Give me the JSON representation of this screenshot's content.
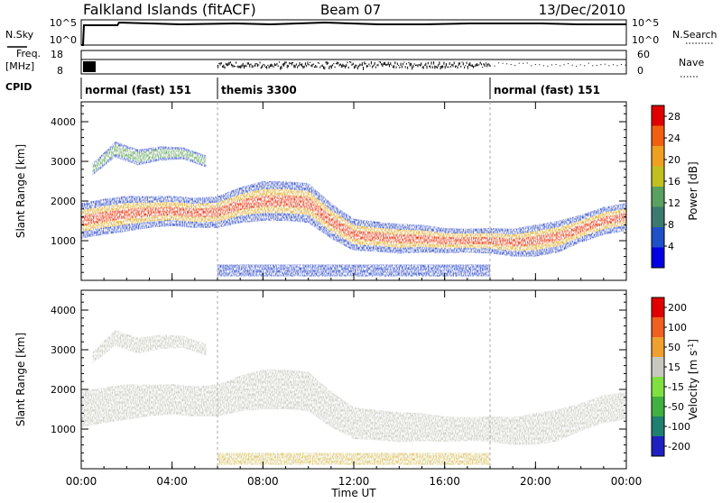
{
  "header": {
    "title": "Falkland Islands (fitACF)",
    "beam": "Beam 07",
    "date": "13/Dec/2010"
  },
  "summary_panels": {
    "nsky_label": "N.Sky",
    "nsearch_label": "N.Search",
    "counts_ticks": [
      "10^5",
      "10^0"
    ],
    "freq_label_1": "Freq.",
    "freq_label_2": "[MHz]",
    "freq_ticks": [
      "18",
      "8"
    ],
    "nave_label": "Nave",
    "nave_ticks": [
      "60",
      "0"
    ],
    "cpid_label": "CPID",
    "cpid_segments": [
      {
        "name": "normal (fast) 151",
        "start_hour": 0,
        "end_hour": 6
      },
      {
        "name": "themis 3300",
        "start_hour": 6,
        "end_hour": 18
      },
      {
        "name": "normal (fast) 151",
        "start_hour": 18,
        "end_hour": 24
      }
    ]
  },
  "chart_data": [
    {
      "type": "heatmap",
      "title": "",
      "xlabel": "Time UT",
      "ylabel": "Slant Range [km]",
      "xlim": [
        0,
        24
      ],
      "ylim": [
        0,
        4500
      ],
      "x_ticks": [
        "00:00",
        "04:00",
        "08:00",
        "12:00",
        "16:00",
        "20:00",
        "00:00"
      ],
      "y_ticks": [
        1000,
        2000,
        3000,
        4000
      ],
      "colorbar": {
        "label": "Power [dB]",
        "ticks": [
          4,
          8,
          12,
          16,
          20,
          24,
          28
        ],
        "range": [
          0,
          30
        ],
        "colors": [
          "#0000e0",
          "#2050c8",
          "#3c7a70",
          "#5aa060",
          "#c0c020",
          "#f0a020",
          "#f06010",
          "#e00000"
        ]
      },
      "bands": [
        {
          "name": "main",
          "x": [
            0,
            1,
            2,
            3,
            4,
            5,
            6,
            7,
            8,
            9,
            10,
            11,
            12,
            13,
            14,
            15,
            16,
            17,
            18,
            19,
            20,
            21,
            22,
            23,
            24
          ],
          "center": [
            1500,
            1600,
            1680,
            1720,
            1750,
            1700,
            1720,
            1900,
            2000,
            2000,
            1950,
            1500,
            1150,
            1100,
            1050,
            1050,
            1000,
            1000,
            1000,
            950,
            1000,
            1100,
            1300,
            1500,
            1600
          ],
          "halfwidth": [
            450,
            450,
            450,
            400,
            380,
            380,
            400,
            450,
            500,
            500,
            500,
            450,
            400,
            380,
            380,
            350,
            320,
            300,
            320,
            350,
            400,
            400,
            350,
            350,
            350
          ]
        },
        {
          "name": "upper",
          "x": [
            0.5,
            1.5,
            2.5,
            3.5,
            4.5,
            5.5
          ],
          "center": [
            2800,
            3300,
            3100,
            3200,
            3200,
            3000
          ],
          "halfwidth": [
            150,
            200,
            200,
            180,
            150,
            150
          ]
        },
        {
          "name": "ground",
          "x": [
            6,
            9,
            12,
            15,
            18
          ],
          "center": [
            250,
            250,
            250,
            250,
            250
          ],
          "halfwidth": [
            150,
            150,
            150,
            150,
            150
          ]
        }
      ]
    },
    {
      "type": "heatmap",
      "title": "",
      "xlabel": "Time UT",
      "ylabel": "Slant Range [km]",
      "xlim": [
        0,
        24
      ],
      "ylim": [
        0,
        4500
      ],
      "x_ticks": [
        "00:00",
        "04:00",
        "08:00",
        "12:00",
        "16:00",
        "20:00",
        "00:00"
      ],
      "y_ticks": [
        1000,
        2000,
        3000,
        4000
      ],
      "colorbar": {
        "label": "Velocity [m s^-1]",
        "tick_labels": [
          "200",
          "100",
          "50",
          "15",
          "-15",
          "-50",
          "-100",
          "-200"
        ],
        "colors": [
          "#2020c0",
          "#208070",
          "#40b040",
          "#80e040",
          "#c8c8c0",
          "#f0a030",
          "#f06020",
          "#e00000"
        ]
      },
      "fill_color": "#c8c8c0"
    }
  ]
}
